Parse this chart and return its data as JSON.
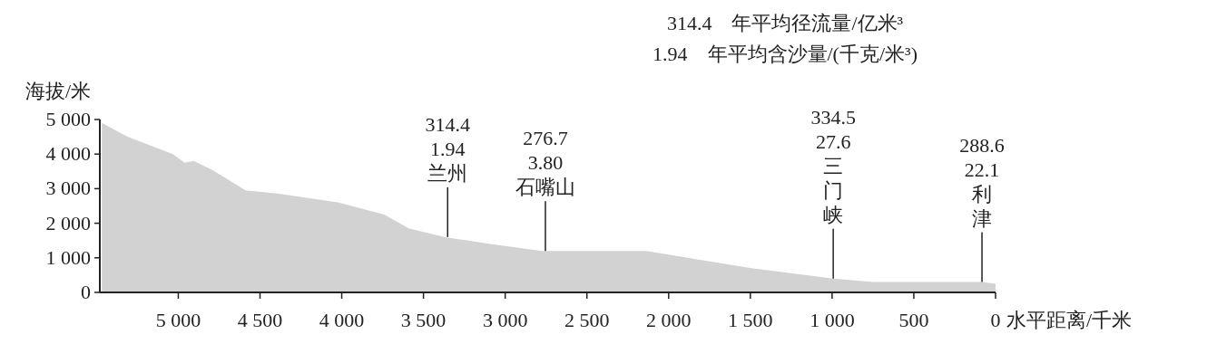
{
  "chart_data": {
    "type": "area",
    "xlabel": "水平距离/千米",
    "ylabel": "海拔/米",
    "color": "#d2d2d2",
    "x": [
      5468,
      5311,
      5033,
      4961,
      4906,
      4795,
      4589,
      4384,
      4018,
      3740,
      3590,
      3368,
      3091,
      2775,
      2136,
      1493,
      993,
      749,
      83,
      0
    ],
    "values": [
      4900,
      4500,
      4000,
      3750,
      3800,
      3550,
      2950,
      2850,
      2600,
      2250,
      1850,
      1600,
      1400,
      1200,
      1200,
      700,
      400,
      300,
      300,
      250
    ],
    "xlim": [
      5480,
      0
    ],
    "ylim": [
      0,
      5000
    ],
    "xticks": [
      {
        "value": 5000,
        "label": "5 000"
      },
      {
        "value": 4500,
        "label": "4 500"
      },
      {
        "value": 4000,
        "label": "4 000"
      },
      {
        "value": 3500,
        "label": "3 500"
      },
      {
        "value": 3000,
        "label": "3 000"
      },
      {
        "value": 2500,
        "label": "2 500"
      },
      {
        "value": 2000,
        "label": "2 000"
      },
      {
        "value": 1500,
        "label": "1 500"
      },
      {
        "value": 1000,
        "label": "1 000"
      },
      500,
      0
    ],
    "yticks": [
      0,
      {
        "value": 1000,
        "label": "1 000"
      },
      {
        "value": 2000,
        "label": "2 000"
      },
      {
        "value": 3000,
        "label": "3 000"
      },
      {
        "value": 4000,
        "label": "4 000"
      },
      {
        "value": 5000,
        "label": "5 000"
      }
    ],
    "annotations": [
      "314.4　年平均径流量/亿米³",
      "1.94　年平均含沙量/(千克/米³)",
      {
        "text": "314.4\n1.94\n兰州",
        "x": 3352,
        "y": 1600
      },
      {
        "text": "276.7\n3.80\n石嘴山",
        "x": 2754,
        "y": 1200
      },
      {
        "text": "334.5\n27.6\n三门峡",
        "x": 993,
        "y": 400
      },
      {
        "text": "288.6\n22.1\n利津",
        "x": 83,
        "y": 300
      }
    ]
  }
}
